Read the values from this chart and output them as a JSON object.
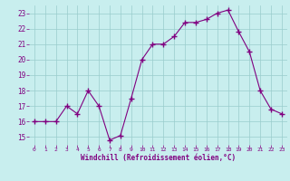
{
  "x": [
    0,
    1,
    2,
    3,
    4,
    5,
    6,
    7,
    8,
    9,
    10,
    11,
    12,
    13,
    14,
    15,
    16,
    17,
    18,
    19,
    20,
    21,
    22,
    23
  ],
  "y": [
    16,
    16,
    16,
    17,
    16.5,
    18,
    17,
    14.8,
    15.1,
    17.5,
    20,
    21,
    21,
    21.5,
    22.4,
    22.4,
    22.6,
    23,
    23.2,
    21.8,
    20.5,
    18,
    16.8,
    16.5
  ],
  "line_color": "#800080",
  "marker_color": "#800080",
  "bg_color": "#c8eeee",
  "grid_color": "#99cccc",
  "xlabel": "Windchill (Refroidissement éolien,°C)",
  "xlabel_color": "#800080",
  "tick_color": "#800080",
  "ylim": [
    14.5,
    23.5
  ],
  "xlim": [
    -0.5,
    23.5
  ],
  "yticks": [
    15,
    16,
    17,
    18,
    19,
    20,
    21,
    22,
    23
  ],
  "xticks": [
    0,
    1,
    2,
    3,
    4,
    5,
    6,
    7,
    8,
    9,
    10,
    11,
    12,
    13,
    14,
    15,
    16,
    17,
    18,
    19,
    20,
    21,
    22,
    23
  ]
}
